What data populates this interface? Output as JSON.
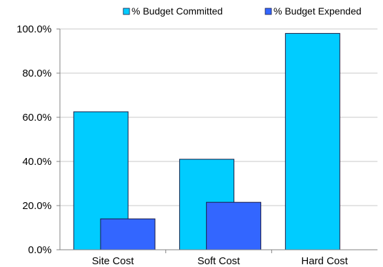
{
  "chart_data": {
    "type": "bar",
    "categories": [
      "Site Cost",
      "Soft Cost",
      "Hard Cost"
    ],
    "series": [
      {
        "name": "% Budget Committed",
        "color": "#00CCFF",
        "values": [
          62.5,
          41.0,
          98.0
        ]
      },
      {
        "name": "% Budget Expended",
        "color": "#3366FF",
        "values": [
          14.0,
          21.5,
          0.0
        ]
      }
    ],
    "yticks": [
      "0.0%",
      "20.0%",
      "40.0%",
      "60.0%",
      "80.0%",
      "100.0%"
    ],
    "ytick_values": [
      0,
      20,
      40,
      60,
      80,
      100
    ],
    "ylim": [
      0,
      100
    ],
    "grid": true,
    "legend_position": "top"
  }
}
